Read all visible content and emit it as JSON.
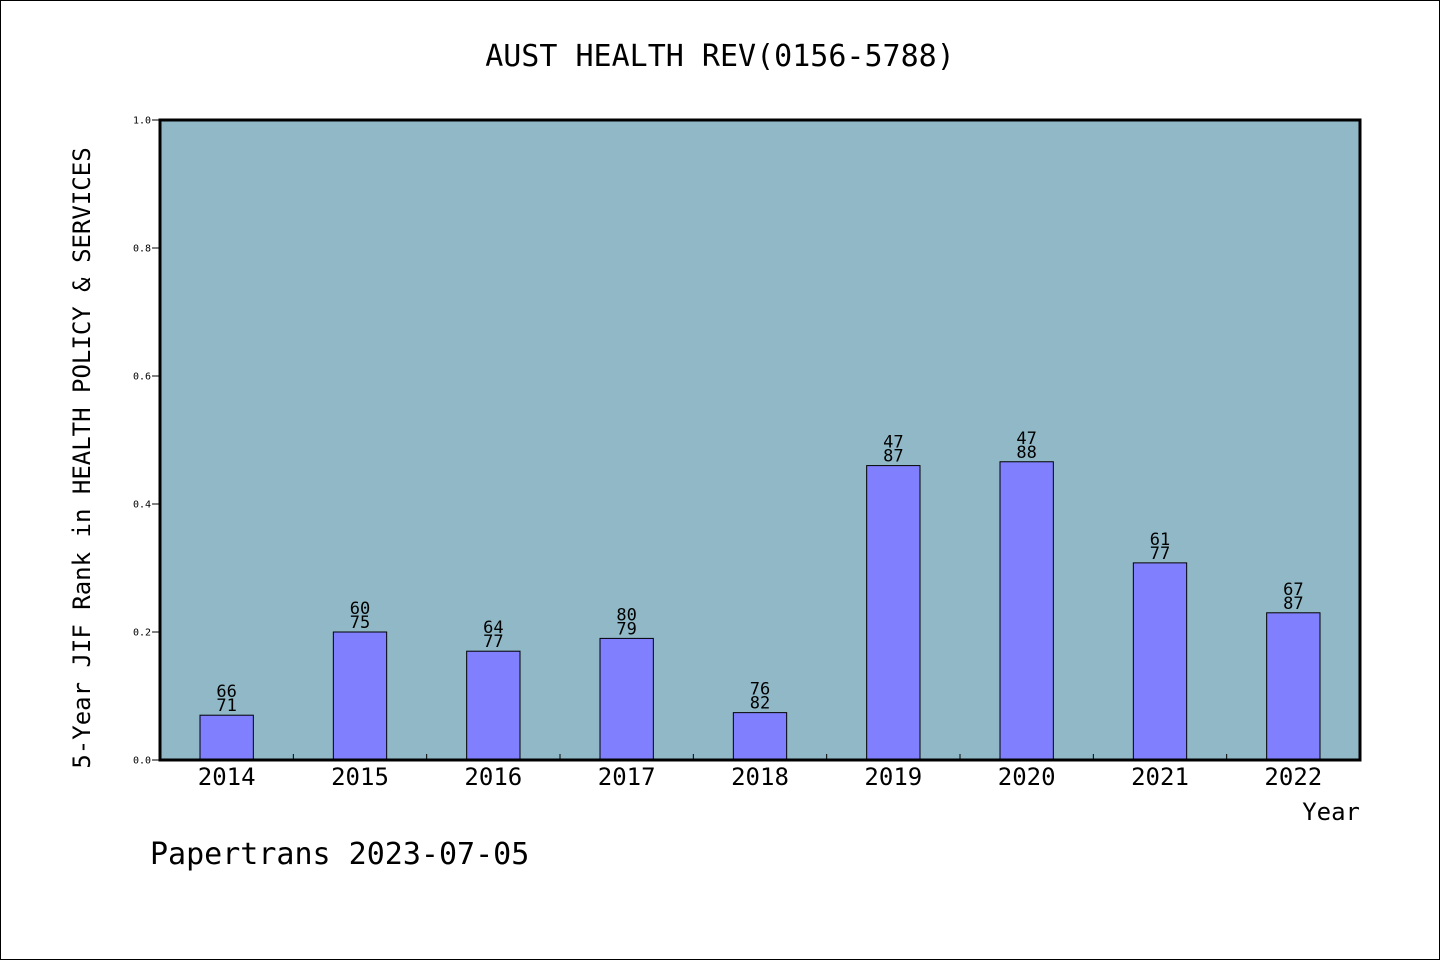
{
  "chart_data": {
    "type": "bar",
    "title": "AUST HEALTH REV(0156-5788)",
    "xlabel": "Year",
    "ylabel": "5-Year JIF Rank in HEALTH POLICY & SERVICES",
    "categories": [
      "2014",
      "2015",
      "2016",
      "2017",
      "2018",
      "2019",
      "2020",
      "2021",
      "2022"
    ],
    "values": [
      0.07,
      0.2,
      0.17,
      0.19,
      0.074,
      0.46,
      0.466,
      0.308,
      0.23
    ],
    "bar_labels": [
      [
        "66",
        "71"
      ],
      [
        "60",
        "75"
      ],
      [
        "64",
        "77"
      ],
      [
        "80",
        "79"
      ],
      [
        "76",
        "82"
      ],
      [
        "47",
        "87"
      ],
      [
        "47",
        "88"
      ],
      [
        "61",
        "77"
      ],
      [
        "67",
        "87"
      ]
    ],
    "ylim": [
      0,
      1.0
    ],
    "yticks": [
      "0.0",
      "0.2",
      "0.4",
      "0.6",
      "0.8",
      "1.0"
    ],
    "ytick_values": [
      0,
      0.2,
      0.4,
      0.6,
      0.8,
      1.0
    ],
    "grid": false,
    "plot_background": "#90b8c6",
    "bar_color": "#8080ff"
  },
  "footer": {
    "credit": "Papertrans 2023-07-05"
  }
}
